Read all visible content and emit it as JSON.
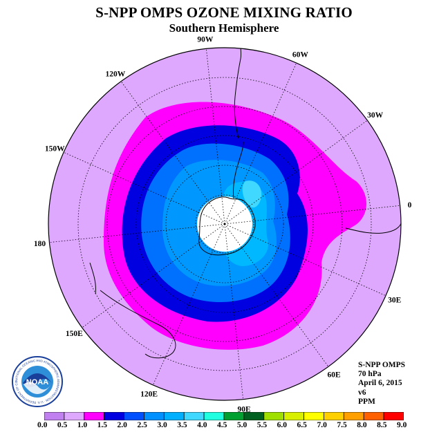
{
  "title": "S-NPP OMPS OZONE MIXING RATIO",
  "subtitle": "Southern Hemisphere",
  "logo": {
    "text": "NOAA",
    "ring_text": "NATIONAL OCEANIC AND ATMOSPHERIC ADMINISTRATION · U.S. DEPARTMENT OF COMMERCE"
  },
  "longitude_labels": [
    "0",
    "30W",
    "60W",
    "90W",
    "120W",
    "150W",
    "180",
    "150E",
    "120E",
    "90E",
    "60E",
    "30E"
  ],
  "info": {
    "instrument": "S-NPP OMPS",
    "level": "70 hPa",
    "date": "April 6, 2015",
    "version": "v6",
    "units": "PPM"
  },
  "colorbar": {
    "labels": [
      "0.0",
      "0.5",
      "1.0",
      "1.5",
      "2.0",
      "2.5",
      "3.0",
      "3.5",
      "4.0",
      "4.5",
      "5.0",
      "5.5",
      "6.0",
      "6.5",
      "7.0",
      "7.5",
      "8.0",
      "8.5",
      "9.0"
    ],
    "colors": [
      "#c080f0",
      "#dfa8ff",
      "#ff00ff",
      "#0000e0",
      "#0050ff",
      "#0090ff",
      "#00b0ff",
      "#40d8ff",
      "#20ffe0",
      "#00a030",
      "#006020",
      "#a0e000",
      "#d8f000",
      "#ffff00",
      "#ffd000",
      "#ffa000",
      "#ff6000",
      "#ff0000",
      "#a06040"
    ]
  },
  "map_colors": {
    "land_bg": "#dfa8ff",
    "band_1_0": "#ff00ff",
    "band_1_5": "#0000e0",
    "band_2_0": "#0070ff",
    "band_2_5": "#0098ff",
    "band_3_0": "#00b8ff",
    "band_3_5": "#40d8ff",
    "polar_night": "#ffffff"
  }
}
